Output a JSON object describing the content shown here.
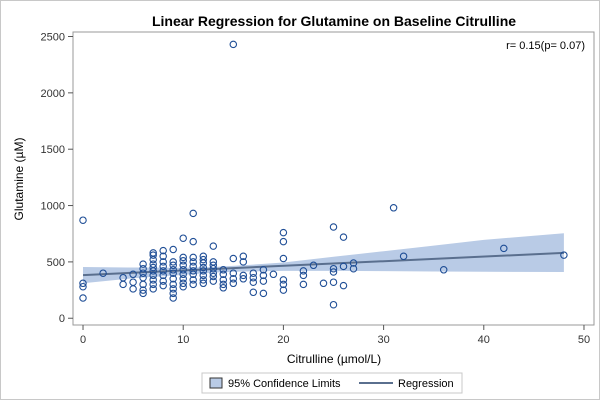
{
  "chart_data": {
    "type": "scatter",
    "title": "Linear Regression for Glutamine on Baseline Citrulline",
    "xlabel": "Citrulline (µmol/L)",
    "ylabel": "Glutamine (µM)",
    "xlim": [
      -1,
      51
    ],
    "ylim": [
      -60,
      2540
    ],
    "x_ticks": [
      0,
      10,
      20,
      30,
      40,
      50
    ],
    "y_ticks": [
      0,
      500,
      1000,
      1500,
      2000,
      2500
    ],
    "annotation": "r= 0.15(p= 0.07)",
    "grid": false,
    "legend_position": "bottom",
    "legend": {
      "band_label": "95% Confidence Limits",
      "line_label": "Regression"
    },
    "colors": {
      "points": "#1f4e96",
      "regression": "#5a6f8e",
      "band": "#b9cbe6"
    },
    "regression": {
      "x": [
        0,
        48
      ],
      "y": [
        383,
        580
      ]
    },
    "confidence_band": [
      {
        "x": 0,
        "lower": 310,
        "upper": 455
      },
      {
        "x": 5,
        "lower": 355,
        "upper": 450
      },
      {
        "x": 10,
        "lower": 385,
        "upper": 448
      },
      {
        "x": 13,
        "lower": 405,
        "upper": 455
      },
      {
        "x": 16,
        "lower": 415,
        "upper": 470
      },
      {
        "x": 20,
        "lower": 420,
        "upper": 495
      },
      {
        "x": 25,
        "lower": 420,
        "upper": 545
      },
      {
        "x": 30,
        "lower": 418,
        "upper": 595
      },
      {
        "x": 35,
        "lower": 415,
        "upper": 645
      },
      {
        "x": 40,
        "lower": 412,
        "upper": 695
      },
      {
        "x": 48,
        "lower": 410,
        "upper": 755
      }
    ],
    "points": [
      [
        0,
        870
      ],
      [
        0,
        310
      ],
      [
        0,
        280
      ],
      [
        0,
        180
      ],
      [
        2,
        400
      ],
      [
        4,
        360
      ],
      [
        4,
        300
      ],
      [
        5,
        390
      ],
      [
        5,
        320
      ],
      [
        5,
        260
      ],
      [
        6,
        480
      ],
      [
        6,
        440
      ],
      [
        6,
        400
      ],
      [
        6,
        360
      ],
      [
        6,
        300
      ],
      [
        6,
        250
      ],
      [
        6,
        220
      ],
      [
        7,
        580
      ],
      [
        7,
        560
      ],
      [
        7,
        520
      ],
      [
        7,
        480
      ],
      [
        7,
        450
      ],
      [
        7,
        420
      ],
      [
        7,
        380
      ],
      [
        7,
        340
      ],
      [
        7,
        300
      ],
      [
        7,
        260
      ],
      [
        8,
        600
      ],
      [
        8,
        550
      ],
      [
        8,
        500
      ],
      [
        8,
        460
      ],
      [
        8,
        420
      ],
      [
        8,
        380
      ],
      [
        8,
        330
      ],
      [
        8,
        290
      ],
      [
        9,
        610
      ],
      [
        9,
        500
      ],
      [
        9,
        470
      ],
      [
        9,
        430
      ],
      [
        9,
        400
      ],
      [
        9,
        350
      ],
      [
        9,
        300
      ],
      [
        9,
        260
      ],
      [
        9,
        220
      ],
      [
        9,
        180
      ],
      [
        10,
        710
      ],
      [
        10,
        540
      ],
      [
        10,
        510
      ],
      [
        10,
        470
      ],
      [
        10,
        430
      ],
      [
        10,
        390
      ],
      [
        10,
        350
      ],
      [
        10,
        310
      ],
      [
        10,
        280
      ],
      [
        11,
        930
      ],
      [
        11,
        680
      ],
      [
        11,
        540
      ],
      [
        11,
        500
      ],
      [
        11,
        460
      ],
      [
        11,
        420
      ],
      [
        11,
        390
      ],
      [
        11,
        340
      ],
      [
        11,
        300
      ],
      [
        12,
        550
      ],
      [
        12,
        520
      ],
      [
        12,
        490
      ],
      [
        12,
        450
      ],
      [
        12,
        420
      ],
      [
        12,
        380
      ],
      [
        12,
        340
      ],
      [
        12,
        310
      ],
      [
        13,
        640
      ],
      [
        13,
        500
      ],
      [
        13,
        470
      ],
      [
        13,
        440
      ],
      [
        13,
        400
      ],
      [
        13,
        370
      ],
      [
        13,
        330
      ],
      [
        14,
        430
      ],
      [
        14,
        390
      ],
      [
        14,
        340
      ],
      [
        14,
        300
      ],
      [
        14,
        270
      ],
      [
        15,
        2430
      ],
      [
        15,
        530
      ],
      [
        15,
        400
      ],
      [
        15,
        350
      ],
      [
        15,
        310
      ],
      [
        16,
        550
      ],
      [
        16,
        500
      ],
      [
        16,
        380
      ],
      [
        16,
        350
      ],
      [
        17,
        400
      ],
      [
        17,
        360
      ],
      [
        17,
        320
      ],
      [
        17,
        230
      ],
      [
        18,
        430
      ],
      [
        18,
        380
      ],
      [
        18,
        330
      ],
      [
        18,
        220
      ],
      [
        19,
        390
      ],
      [
        20,
        760
      ],
      [
        20,
        680
      ],
      [
        20,
        530
      ],
      [
        20,
        340
      ],
      [
        20,
        300
      ],
      [
        20,
        250
      ],
      [
        22,
        420
      ],
      [
        22,
        380
      ],
      [
        22,
        300
      ],
      [
        23,
        470
      ],
      [
        24,
        310
      ],
      [
        25,
        810
      ],
      [
        25,
        440
      ],
      [
        25,
        410
      ],
      [
        25,
        320
      ],
      [
        25,
        120
      ],
      [
        26,
        720
      ],
      [
        26,
        460
      ],
      [
        26,
        290
      ],
      [
        27,
        490
      ],
      [
        27,
        440
      ],
      [
        31,
        980
      ],
      [
        32,
        550
      ],
      [
        36,
        430
      ],
      [
        42,
        620
      ],
      [
        48,
        560
      ]
    ]
  }
}
